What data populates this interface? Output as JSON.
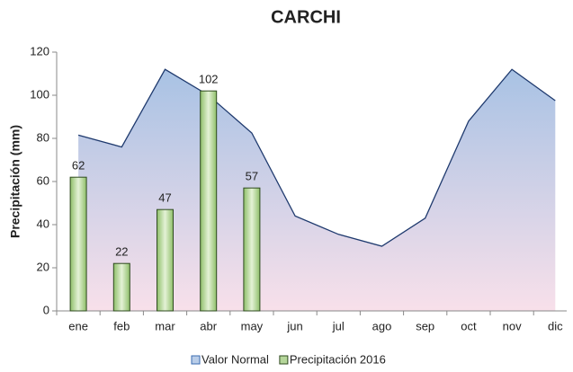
{
  "chart_data": {
    "type": "bar-area",
    "title": "CARCHI",
    "y_label": "Precipitación (mm)",
    "categories": [
      "ene",
      "feb",
      "mar",
      "abr",
      "may",
      "jun",
      "jul",
      "ago",
      "sep",
      "oct",
      "nov",
      "dic"
    ],
    "series": [
      {
        "name": "Valor Normal",
        "type": "area",
        "color": "#1f3a6e",
        "values": [
          81.5,
          76,
          112,
          100,
          82.5,
          44,
          35.5,
          30,
          43,
          88,
          112,
          97.5
        ]
      },
      {
        "name": "Precipitación 2016",
        "type": "bar",
        "color": "#9bc47a",
        "values": [
          62,
          22,
          47,
          102,
          57,
          null,
          null,
          null,
          null,
          null,
          null,
          null
        ]
      }
    ],
    "ylim": [
      0,
      120
    ],
    "yticks": [
      0,
      20,
      40,
      60,
      80,
      100,
      120
    ],
    "legend": "bottom"
  }
}
